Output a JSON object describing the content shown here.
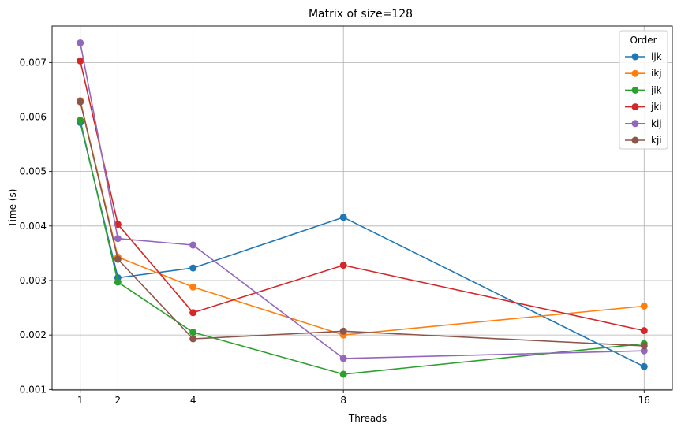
{
  "chart_data": {
    "type": "line",
    "title": "Matrix of size=128",
    "xlabel": "Threads",
    "ylabel": "Time (s)",
    "x": [
      1,
      2,
      4,
      8,
      16
    ],
    "x_ticks": [
      "1",
      "2",
      "4",
      "8",
      "16"
    ],
    "xlim": [
      0.25,
      16.75
    ],
    "ylim": [
      0.00099,
      0.00767
    ],
    "y_ticks": [
      "0.001",
      "0.002",
      "0.003",
      "0.004",
      "0.005",
      "0.006",
      "0.007"
    ],
    "y_tick_values": [
      0.001,
      0.002,
      0.003,
      0.004,
      0.005,
      0.006,
      0.007
    ],
    "grid": true,
    "legend": {
      "title": "Order",
      "placement": "top-right"
    },
    "series": [
      {
        "name": "ijk",
        "color": "#1f77b4",
        "values": [
          0.0059,
          0.00305,
          0.00323,
          0.00416,
          0.00142
        ]
      },
      {
        "name": "ikj",
        "color": "#ff7f0e",
        "values": [
          0.0063,
          0.00343,
          0.00288,
          0.002,
          0.00253
        ]
      },
      {
        "name": "jik",
        "color": "#2ca02c",
        "values": [
          0.00594,
          0.00297,
          0.00205,
          0.00128,
          0.00184
        ]
      },
      {
        "name": "jki",
        "color": "#d62728",
        "values": [
          0.00703,
          0.00403,
          0.00241,
          0.00328,
          0.00208
        ]
      },
      {
        "name": "kij",
        "color": "#9467bd",
        "values": [
          0.00736,
          0.00377,
          0.00365,
          0.00157,
          0.00171
        ]
      },
      {
        "name": "kji",
        "color": "#8c564b",
        "values": [
          0.00628,
          0.00339,
          0.00193,
          0.00207,
          0.0018
        ]
      }
    ]
  }
}
